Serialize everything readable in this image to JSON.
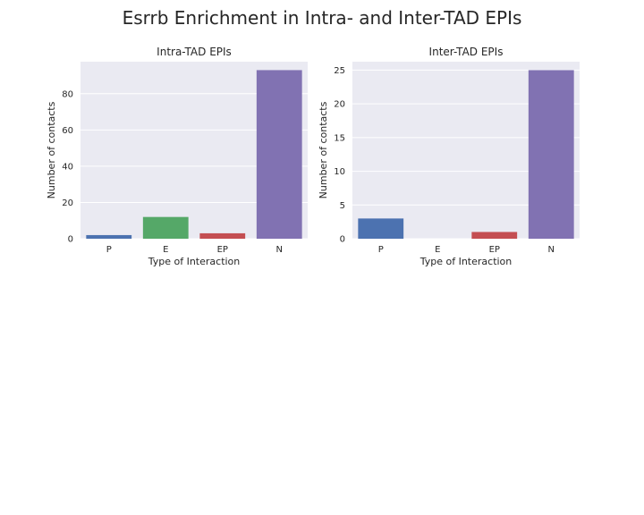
{
  "figure": {
    "title": "Esrrb Enrichment in Intra- and Inter-TAD EPIs",
    "background": "#ffffff",
    "plot_background": "#EAEAF2",
    "grid_color": "#ffffff"
  },
  "chart_data": [
    {
      "type": "bar",
      "title": "Intra-TAD EPIs",
      "xlabel": "Type of Interaction",
      "ylabel": "Number of contacts",
      "categories": [
        "P",
        "E",
        "EP",
        "N"
      ],
      "values": [
        2,
        12,
        3,
        93
      ],
      "colors": [
        "#4C72B0",
        "#55A868",
        "#C44E52",
        "#8172B2"
      ],
      "ylim": [
        0,
        97.65
      ],
      "yticks": [
        0,
        20,
        40,
        60,
        80
      ],
      "grid": true,
      "legend": "none"
    },
    {
      "type": "bar",
      "title": "Inter-TAD EPIs",
      "xlabel": "Type of Interaction",
      "ylabel": "Number of contacts",
      "categories": [
        "P",
        "E",
        "EP",
        "N"
      ],
      "values": [
        3,
        0,
        1,
        25
      ],
      "colors": [
        "#4C72B0",
        "#55A868",
        "#C44E52",
        "#8172B2"
      ],
      "ylim": [
        0,
        26.25
      ],
      "yticks": [
        0,
        5,
        10,
        15,
        20,
        25
      ],
      "grid": true,
      "legend": "none"
    }
  ]
}
